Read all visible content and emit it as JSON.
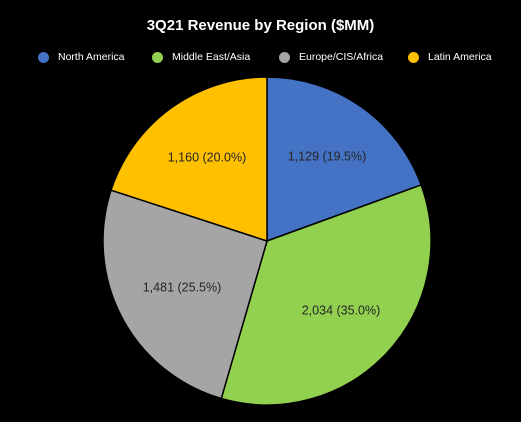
{
  "chart_data": {
    "type": "pie",
    "title": "3Q21 Revenue by Region ($MM)",
    "legend_position": "top",
    "categories": [
      "North America",
      "Middle East/Asia",
      "Europe/CIS/Africa",
      "Latin America"
    ],
    "values": [
      1129,
      2034,
      1481,
      1160
    ],
    "percent_labels": [
      "19.5%",
      "35.0%",
      "25.5%",
      "20.0%"
    ],
    "data_labels": [
      "1,129 (19.5%)",
      "2,034 (35.0%)",
      "1,481 (25.5%)",
      "1,160 (20.0%)"
    ],
    "colors": [
      "#4472C4",
      "#92D050",
      "#A5A5A5",
      "#FFC000"
    ],
    "start_angle_deg": 0,
    "direction": "clockwise"
  }
}
